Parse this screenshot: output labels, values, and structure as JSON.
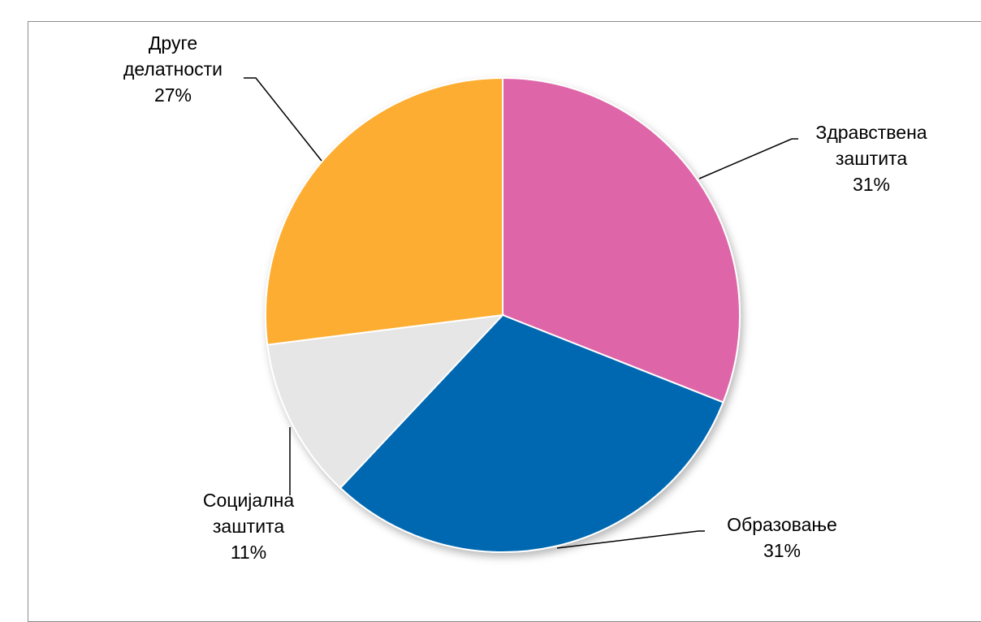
{
  "chart_data": {
    "type": "pie",
    "title": "",
    "slices": [
      {
        "label_lines": [
          "Здравствена",
          "заштита"
        ],
        "value": 31,
        "value_label": "31%",
        "color": "#DE66A8"
      },
      {
        "label_lines": [
          "Образовање"
        ],
        "value": 31,
        "value_label": "31%",
        "color": "#0068B1"
      },
      {
        "label_lines": [
          "Социјална",
          "заштита"
        ],
        "value": 11,
        "value_label": "11%",
        "color": "#E7E6E7"
      },
      {
        "label_lines": [
          "Друге",
          "делатности"
        ],
        "value": 27,
        "value_label": "27%",
        "color": "#FDAD30"
      }
    ],
    "start_angle_deg": 0,
    "direction": "clockwise",
    "legend": "none",
    "data_labels": "outside-with-leader-lines"
  }
}
